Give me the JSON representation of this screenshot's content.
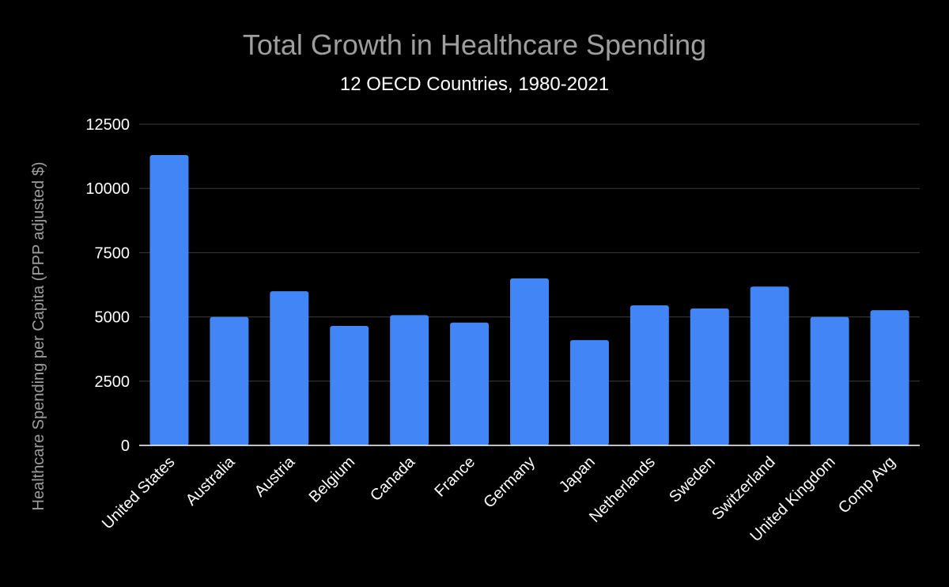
{
  "chart_data": {
    "type": "bar",
    "title": "Total Growth in Healthcare Spending",
    "subtitle": "12 OECD Countries, 1980-2021",
    "xlabel": "",
    "ylabel": "Healthcare Spending per Capita (PPP adjusted $)",
    "ylim": [
      0,
      12500
    ],
    "yticks": [
      0,
      2500,
      5000,
      7500,
      10000,
      12500
    ],
    "grid": true,
    "legend": "none",
    "colors": {
      "bar": "#4285f4",
      "background": "#000000",
      "grid": "#3c3c3c",
      "title": "#9e9e9e",
      "text": "#ffffff"
    },
    "categories": [
      "United States",
      "Australia",
      "Austria",
      "Belgium",
      "Canada",
      "France",
      "Germany",
      "Japan",
      "Netherlands",
      "Sweden",
      "Switzerland",
      "United Kingdom",
      "Comp Avg"
    ],
    "values": [
      11300,
      5000,
      6000,
      4650,
      5070,
      4780,
      6500,
      4100,
      5450,
      5330,
      6180,
      5000,
      5260
    ]
  }
}
